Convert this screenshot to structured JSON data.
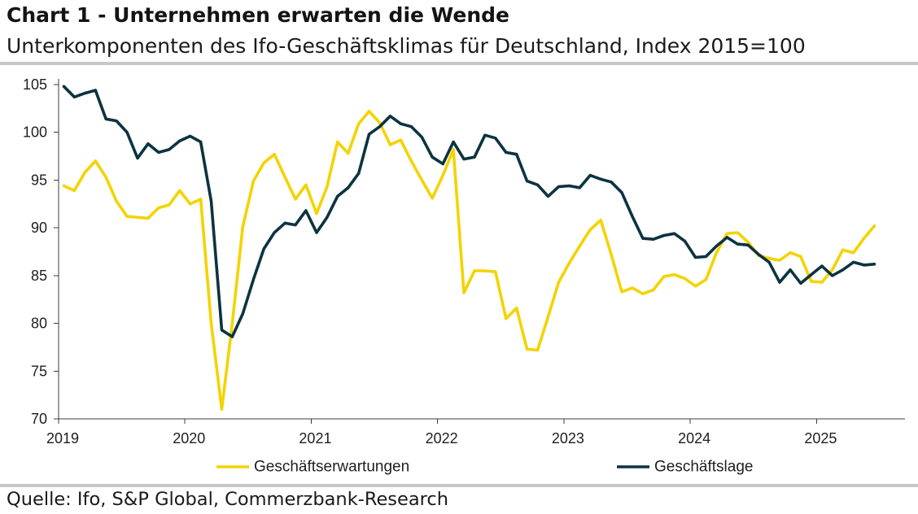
{
  "chart_data": {
    "type": "line",
    "title": "Chart 1 - Unternehmen erwarten die Wende",
    "subtitle": "Unterkomponenten des Ifo-Geschäftsklimas für Deutschland, Index 2015=100",
    "source": "Quelle: Ifo, S&P Global, Commerzbank-Research",
    "xlabel": "",
    "ylabel": "",
    "xlim": [
      2019,
      2025.7
    ],
    "ylim": [
      70,
      105
    ],
    "x_ticks": [
      2019,
      2020,
      2021,
      2022,
      2023,
      2024,
      2025
    ],
    "y_ticks": [
      70,
      75,
      80,
      85,
      90,
      95,
      100,
      105
    ],
    "grid": false,
    "legend_position": "bottom",
    "x": [
      2019.042,
      2019.125,
      2019.208,
      2019.292,
      2019.375,
      2019.458,
      2019.542,
      2019.625,
      2019.708,
      2019.792,
      2019.875,
      2019.958,
      2020.042,
      2020.125,
      2020.208,
      2020.292,
      2020.375,
      2020.458,
      2020.542,
      2020.625,
      2020.708,
      2020.792,
      2020.875,
      2020.958,
      2021.042,
      2021.125,
      2021.208,
      2021.292,
      2021.375,
      2021.458,
      2021.542,
      2021.625,
      2021.708,
      2021.792,
      2021.875,
      2021.958,
      2022.042,
      2022.125,
      2022.208,
      2022.292,
      2022.375,
      2022.458,
      2022.542,
      2022.625,
      2022.708,
      2022.792,
      2022.875,
      2022.958,
      2023.042,
      2023.125,
      2023.208,
      2023.292,
      2023.375,
      2023.458,
      2023.542,
      2023.625,
      2023.708,
      2023.792,
      2023.875,
      2023.958,
      2024.042,
      2024.125,
      2024.208,
      2024.292,
      2024.375,
      2024.458,
      2024.542,
      2024.625,
      2024.708,
      2024.792,
      2024.875,
      2024.958,
      2025.042,
      2025.125,
      2025.208,
      2025.292,
      2025.375,
      2025.458
    ],
    "series": [
      {
        "name": "Geschäftserwartungen",
        "color": "#f4d300",
        "values": [
          94.4,
          93.9,
          95.8,
          97.0,
          95.3,
          92.8,
          91.2,
          91.1,
          91.0,
          92.1,
          92.4,
          93.9,
          92.5,
          93.0,
          80.0,
          71.0,
          80.0,
          90.1,
          94.9,
          96.8,
          97.7,
          95.3,
          93.0,
          94.5,
          91.5,
          94.3,
          99.0,
          97.8,
          100.9,
          102.2,
          101.0,
          98.7,
          99.2,
          97.0,
          95.0,
          93.1,
          95.5,
          98.2,
          83.2,
          85.5,
          85.5,
          85.4,
          80.5,
          81.6,
          77.3,
          77.2,
          80.7,
          84.3,
          86.3,
          88.1,
          89.8,
          90.8,
          87.2,
          83.3,
          83.7,
          83.1,
          83.5,
          84.9,
          85.1,
          84.7,
          83.9,
          84.6,
          87.4,
          89.4,
          89.5,
          88.5,
          87.1,
          86.8,
          86.6,
          87.4,
          87.0,
          84.4,
          84.3,
          85.6,
          87.7,
          87.4,
          88.9,
          90.2
        ]
      },
      {
        "name": "Geschäftslage",
        "color": "#0c3340",
        "values": [
          104.8,
          103.7,
          104.1,
          104.4,
          101.4,
          101.2,
          100.0,
          97.3,
          98.8,
          97.9,
          98.2,
          99.1,
          99.6,
          99.0,
          92.8,
          79.3,
          78.6,
          81.0,
          84.6,
          87.8,
          89.5,
          90.5,
          90.3,
          91.8,
          89.5,
          91.1,
          93.3,
          94.2,
          95.7,
          99.8,
          100.6,
          101.7,
          100.9,
          100.6,
          99.5,
          97.4,
          96.7,
          99.0,
          97.2,
          97.4,
          99.7,
          99.4,
          97.9,
          97.7,
          94.9,
          94.5,
          93.3,
          94.3,
          94.4,
          94.2,
          95.5,
          95.1,
          94.8,
          93.7,
          91.2,
          88.9,
          88.8,
          89.2,
          89.4,
          88.6,
          86.9,
          87.0,
          88.1,
          89.0,
          88.3,
          88.2,
          87.2,
          86.4,
          84.3,
          85.6,
          84.2,
          85.1,
          86.0,
          85.0,
          85.6,
          86.4,
          86.1,
          86.2
        ]
      }
    ]
  }
}
